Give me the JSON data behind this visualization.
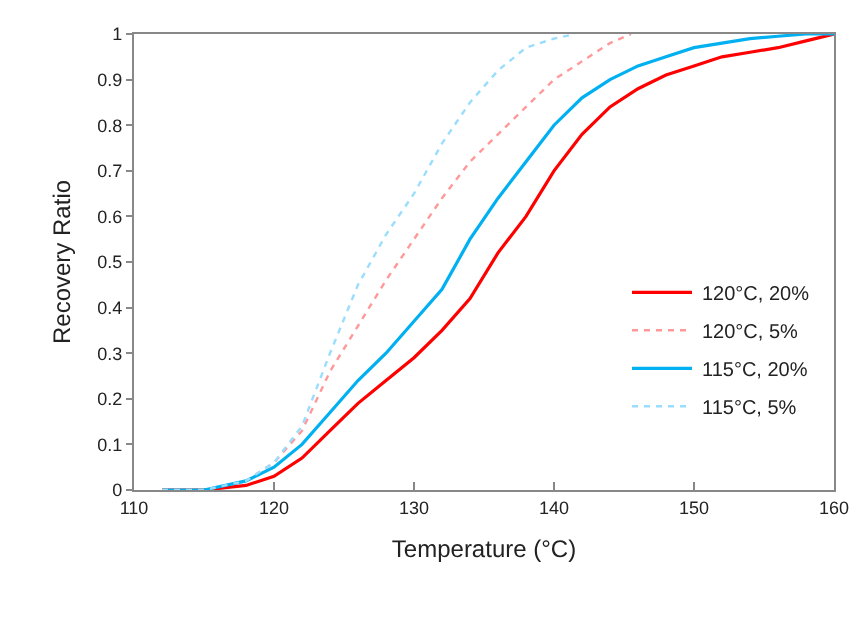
{
  "chart_data": {
    "type": "line",
    "xlabel": "Temperature (°C)",
    "ylabel": "Recovery Ratio",
    "xlim": [
      110,
      160
    ],
    "xticks": [
      110,
      120,
      130,
      140,
      150,
      160
    ],
    "ylim": [
      0,
      1
    ],
    "yticks": [
      0,
      0.1,
      0.2,
      0.3,
      0.4,
      0.5,
      0.6,
      0.7,
      0.8,
      0.9,
      1
    ],
    "grid": false,
    "legend": "bottom right",
    "marker": "none",
    "series": [
      {
        "name": "120°C, 20%",
        "color": "#ff0000",
        "line_style": "solid",
        "x": [
          112,
          115,
          118,
          120,
          122,
          124,
          126,
          128,
          130,
          132,
          134,
          136,
          138,
          140,
          142,
          144,
          146,
          148,
          150,
          152,
          154,
          156,
          158,
          160
        ],
        "values": [
          0,
          0,
          0.01,
          0.03,
          0.07,
          0.13,
          0.19,
          0.24,
          0.29,
          0.35,
          0.42,
          0.52,
          0.6,
          0.7,
          0.78,
          0.84,
          0.88,
          0.91,
          0.93,
          0.95,
          0.96,
          0.97,
          0.985,
          1
        ]
      },
      {
        "name": "120°C, 5%",
        "color": "#ff9999",
        "line_style": "dotted",
        "x": [
          112,
          115,
          118,
          120,
          122,
          124,
          126,
          128,
          130,
          132,
          134,
          136,
          138,
          140,
          142,
          144,
          145.5
        ],
        "values": [
          0,
          0,
          0.02,
          0.06,
          0.13,
          0.26,
          0.36,
          0.46,
          0.55,
          0.64,
          0.72,
          0.78,
          0.84,
          0.9,
          0.94,
          0.98,
          1
        ]
      },
      {
        "name": "115°C, 20%",
        "color": "#00b0f0",
        "line_style": "solid",
        "x": [
          112,
          115,
          118,
          120,
          122,
          124,
          126,
          128,
          130,
          132,
          134,
          136,
          138,
          140,
          142,
          144,
          146,
          148,
          150,
          152,
          154,
          156,
          158,
          160
        ],
        "values": [
          0,
          0,
          0.02,
          0.05,
          0.1,
          0.17,
          0.24,
          0.3,
          0.37,
          0.44,
          0.55,
          0.64,
          0.72,
          0.8,
          0.86,
          0.9,
          0.93,
          0.95,
          0.97,
          0.98,
          0.99,
          0.995,
          1,
          1
        ]
      },
      {
        "name": "115°C, 5%",
        "color": "#99ddff",
        "line_style": "dotted",
        "x": [
          112,
          115,
          118,
          120,
          122,
          124,
          126,
          128,
          130,
          132,
          134,
          136,
          138,
          140,
          141.5
        ],
        "values": [
          0,
          0,
          0.02,
          0.06,
          0.14,
          0.3,
          0.45,
          0.56,
          0.65,
          0.76,
          0.85,
          0.92,
          0.97,
          0.99,
          1
        ]
      }
    ]
  }
}
